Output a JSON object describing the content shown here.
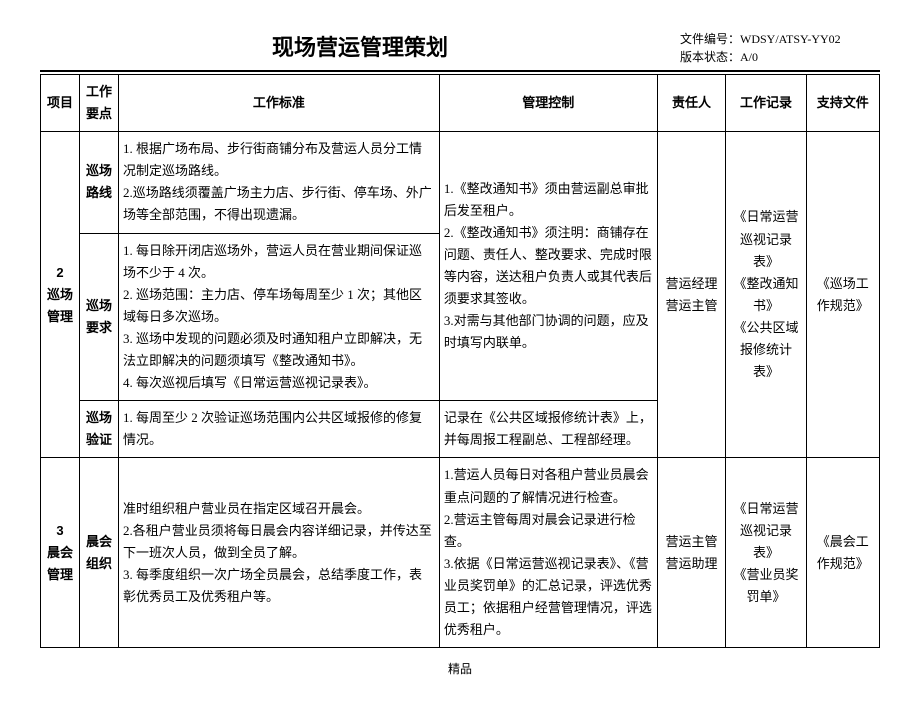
{
  "header": {
    "title": "现场营运管理策划",
    "doc_no_label": "文件编号：",
    "doc_no": "WDSY/ATSY-YY02",
    "ver_label": "版本状态：",
    "ver": "A/0"
  },
  "columns": {
    "proj": "项目",
    "point": "工作要点",
    "std": "工作标准",
    "ctrl": "管理控制",
    "resp": "责任人",
    "rec": "工作记录",
    "doc": "支持文件"
  },
  "section2": {
    "id": "2",
    "name": "巡场管理",
    "point1": "巡场路线",
    "std1": "1. 根据广场布局、步行街商铺分布及营运人员分工情况制定巡场路线。\n2.巡场路线须覆盖广场主力店、步行街、停车场、外广场等全部范围，不得出现遗漏。",
    "point2": "巡场要求",
    "std2": "1. 每日除开闭店巡场外，营运人员在营业期间保证巡场不少于 4 次。\n2. 巡场范围：主力店、停车场每周至少 1 次；其他区域每日多次巡场。\n3. 巡场中发现的问题必须及时通知租户立即解决，无法立即解决的问题须填写《整改通知书》。\n4. 每次巡视后填写《日常运营巡视记录表》。",
    "ctrl2": "1.《整改通知书》须由营运副总审批后发至租户。\n2.《整改通知书》须注明：商铺存在问题、责任人、整改要求、完成时限等内容，送达租户负责人或其代表后须要求其签收。\n3.对需与其他部门协调的问题，应及时填写内联单。",
    "point3": "巡场验证",
    "std3": "1. 每周至少 2 次验证巡场范围内公共区域报修的修复情况。",
    "ctrl3": "记录在《公共区域报修统计表》上，并每周报工程副总、工程部经理。",
    "resp": "营运经理\n营运主管",
    "rec": "《日常运营巡视记录表》\n《整改通知书》\n《公共区域报修统计表》",
    "doc": "《巡场工作规范》"
  },
  "section3": {
    "id": "3",
    "name": "晨会管理",
    "point": "晨会组织",
    "std": "准时组织租户营业员在指定区域召开晨会。\n2.各租户营业员须将每日晨会内容详细记录，并传达至下一班次人员，做到全员了解。\n3. 每季度组织一次广场全员晨会，总结季度工作，表彰优秀员工及优秀租户等。",
    "ctrl": "1.营运人员每日对各租户营业员晨会重点问题的了解情况进行检查。\n2.营运主管每周对晨会记录进行检查。\n3.依据《日常运营巡视记录表》、《营业员奖罚单》的汇总记录，评选优秀员工；依据租户经营管理情况，评选优秀租户。",
    "resp": "营运主管\n营运助理",
    "rec": "《日常运营巡视记录表》\n《营业员奖罚单》",
    "doc": "《晨会工作规范》"
  },
  "footer": "精品"
}
